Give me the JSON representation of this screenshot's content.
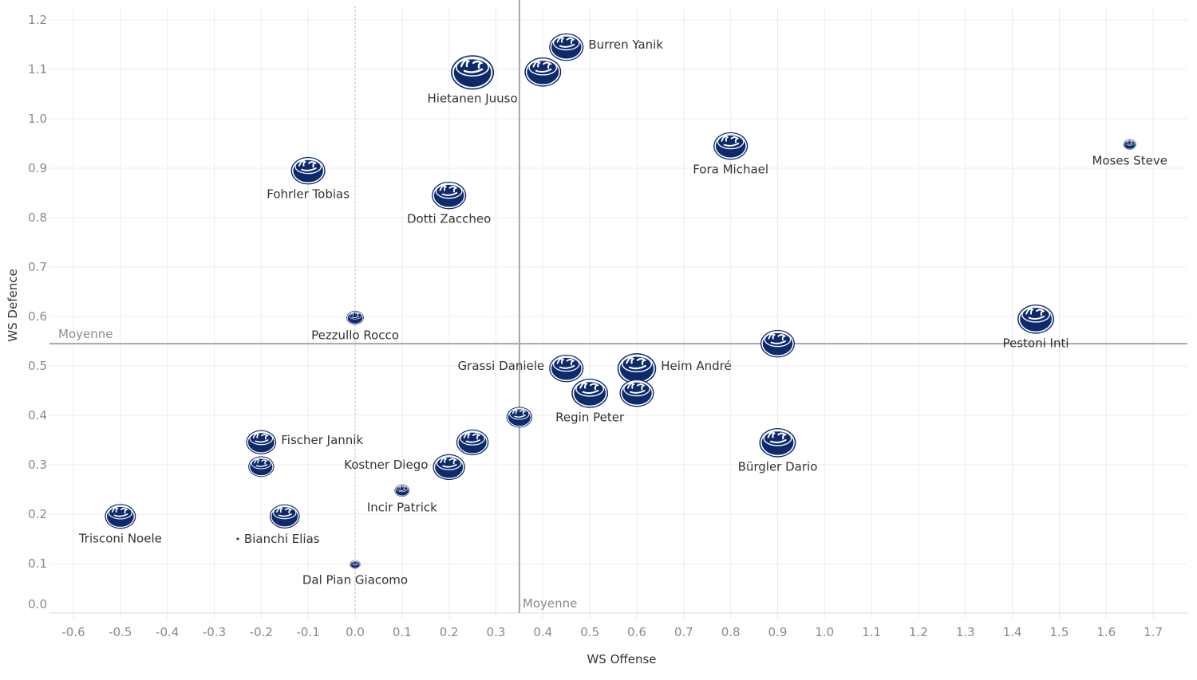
{
  "chart_data": {
    "type": "scatter",
    "title": "",
    "xlabel": "WS Offense",
    "ylabel": "WS Defence",
    "xlim": [
      -0.65,
      1.77
    ],
    "ylim": [
      0.0,
      1.23
    ],
    "xticks": [
      "-0.6",
      "-0.5",
      "-0.4",
      "-0.3",
      "-0.2",
      "-0.1",
      "0.0",
      "0.1",
      "0.2",
      "0.3",
      "0.4",
      "0.5",
      "0.6",
      "0.7",
      "0.8",
      "0.9",
      "1.0",
      "1.1",
      "1.2",
      "1.3",
      "1.4",
      "1.5",
      "1.6",
      "1.7"
    ],
    "yticks": [
      "0.0",
      "0.1",
      "0.2",
      "0.3",
      "0.4",
      "0.5",
      "0.6",
      "0.7",
      "0.8",
      "0.9",
      "1.0",
      "1.1",
      "1.2"
    ],
    "grid": true,
    "marker_color": "#0d2a6b",
    "reference_lines": {
      "x_mean": {
        "value": 0.35,
        "label": "Moyenne"
      },
      "y_mean": {
        "value": 0.545,
        "label": "Moyenne"
      },
      "x_zero": {
        "value": 0.0
      }
    },
    "points": [
      {
        "name": "Burren Yanik",
        "x": 0.45,
        "y": 1.15,
        "size": 0.8,
        "label_pos": "right"
      },
      {
        "name": "",
        "x": 0.4,
        "y": 1.1,
        "size": 0.85,
        "label_pos": "none"
      },
      {
        "name": "Hietanen Juuso",
        "x": 0.25,
        "y": 1.1,
        "size": 1.0,
        "label_pos": "below"
      },
      {
        "name": "Fora Michael",
        "x": 0.8,
        "y": 0.95,
        "size": 0.8,
        "label_pos": "below"
      },
      {
        "name": "Moses Steve",
        "x": 1.65,
        "y": 0.95,
        "size": 0.3,
        "label_pos": "below"
      },
      {
        "name": "Fohrler Tobias",
        "x": -0.1,
        "y": 0.9,
        "size": 0.8,
        "label_pos": "below"
      },
      {
        "name": "Dotti Zaccheo",
        "x": 0.2,
        "y": 0.85,
        "size": 0.8,
        "label_pos": "below"
      },
      {
        "name": "Pezzullo Rocco",
        "x": 0.0,
        "y": 0.6,
        "size": 0.4,
        "label_pos": "below"
      },
      {
        "name": "Pestoni Inti",
        "x": 1.45,
        "y": 0.6,
        "size": 0.85,
        "label_pos": "below"
      },
      {
        "name": "",
        "x": 0.9,
        "y": 0.55,
        "size": 0.8,
        "label_pos": "none"
      },
      {
        "name": "Grassi Daniele",
        "x": 0.45,
        "y": 0.5,
        "size": 0.8,
        "label_pos": "left"
      },
      {
        "name": "Heim André",
        "x": 0.6,
        "y": 0.5,
        "size": 0.9,
        "label_pos": "right"
      },
      {
        "name": "Regin Peter",
        "x": 0.5,
        "y": 0.45,
        "size": 0.85,
        "label_pos": "below"
      },
      {
        "name": "",
        "x": 0.6,
        "y": 0.45,
        "size": 0.8,
        "label_pos": "none"
      },
      {
        "name": "",
        "x": 0.35,
        "y": 0.4,
        "size": 0.6,
        "label_pos": "none"
      },
      {
        "name": "Fischer Jannik",
        "x": -0.2,
        "y": 0.35,
        "size": 0.7,
        "label_pos": "right"
      },
      {
        "name": "",
        "x": 0.25,
        "y": 0.35,
        "size": 0.75,
        "label_pos": "none"
      },
      {
        "name": "Bürgler Dario",
        "x": 0.9,
        "y": 0.35,
        "size": 0.85,
        "label_pos": "below"
      },
      {
        "name": "",
        "x": -0.2,
        "y": 0.3,
        "size": 0.6,
        "label_pos": "none"
      },
      {
        "name": "Kostner Diego",
        "x": 0.2,
        "y": 0.3,
        "size": 0.75,
        "label_pos": "left"
      },
      {
        "name": "Incir Patrick",
        "x": 0.1,
        "y": 0.25,
        "size": 0.35,
        "label_pos": "below"
      },
      {
        "name": "Trisconi Noele",
        "x": -0.5,
        "y": 0.2,
        "size": 0.72,
        "label_pos": "below"
      },
      {
        "name": "",
        "x": -0.15,
        "y": 0.2,
        "size": 0.7,
        "label_pos": "none"
      },
      {
        "name": "Bianchi Elias",
        "x": -0.25,
        "y": 0.15,
        "size": 0.05,
        "label_pos": "right"
      },
      {
        "name": "Dal Pian Giacomo",
        "x": 0.0,
        "y": 0.1,
        "size": 0.25,
        "label_pos": "below"
      }
    ]
  }
}
